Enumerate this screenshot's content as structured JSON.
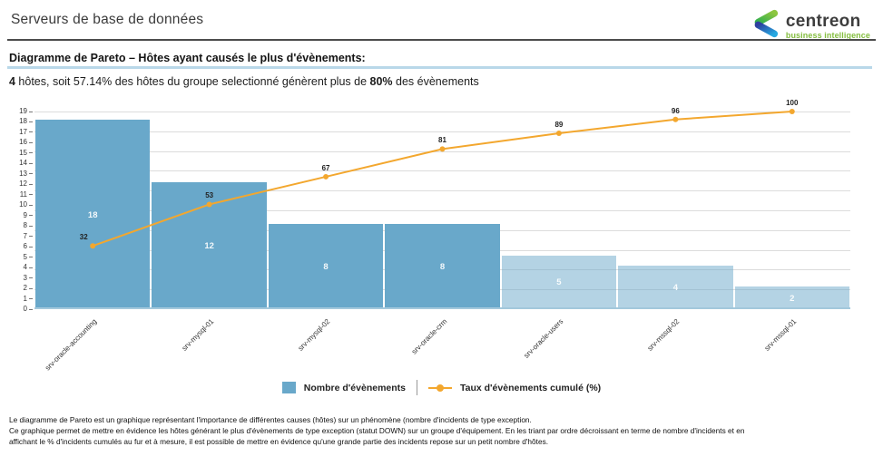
{
  "header": {
    "title": "Serveurs de base de données",
    "logo": {
      "brand": "centreon",
      "tagline": "business intelligence",
      "brand_color": "#3d3d3d",
      "tagline_color": "#84bd3f",
      "icon_green": "#45b649",
      "icon_blue": "#2e6db4"
    }
  },
  "report": {
    "subtitle": "Diagramme de Pareto – Hôtes ayant causés le plus d'évènements:",
    "summary": {
      "count_bold": "4",
      "mid_text": " hôtes, soit 57.14% des hôtes du groupe selectionné génèrent plus de ",
      "pct_bold": "80%",
      "tail_text": " des évènements"
    }
  },
  "chart_data": {
    "type": "bar",
    "subtype": "pareto (bar + cumulative line)",
    "categories": [
      "srv-oracle-accounting",
      "srv-mysql-01",
      "srv-mysql-02",
      "srv-oracle-crm",
      "srv-oracle-users",
      "srv-mssql-02",
      "srv-mssql-01"
    ],
    "series": [
      {
        "name": "Nombre d'évènements",
        "type": "bar",
        "values": [
          18,
          12,
          8,
          8,
          5,
          4,
          2
        ]
      },
      {
        "name": "Taux d'évènements cumulé (%)",
        "type": "line",
        "values": [
          32,
          53,
          67,
          81,
          89,
          96,
          100
        ]
      }
    ],
    "title": "",
    "xlabel": "",
    "ylabel": "",
    "ylim": [
      0,
      19
    ],
    "y_tick_step": 1,
    "line_axis_range": [
      0,
      100
    ],
    "grid": "on",
    "grid_divisions": 10,
    "legend_position": "bottom-center",
    "highlight_bars": 4,
    "colors": {
      "bar_major": "#69a8ca",
      "bar_minor": "rgba(105,168,202,0.5)",
      "line": "#f3a72e",
      "gridline": "#dcdcdc",
      "axis_baseline": "#a3c8dc"
    }
  },
  "footer": {
    "lines": [
      "Le diagramme de Pareto est un graphique représentant l'importance de différentes causes (hôtes) sur un phénomène (nombre d'incidents de type exception.",
      "Ce graphique permet de mettre en évidence les hôtes générant le plus d'évènements de type exception (statut DOWN) sur un groupe d'équipement. En les triant par ordre décroissant en terme de nombre d'incidents et en",
      "affichant le % d'incidents cumulés au fur et à mesure, il est possible de mettre en évidence qu'une grande partie des incidents repose sur un petit nombre d'hôtes."
    ]
  }
}
